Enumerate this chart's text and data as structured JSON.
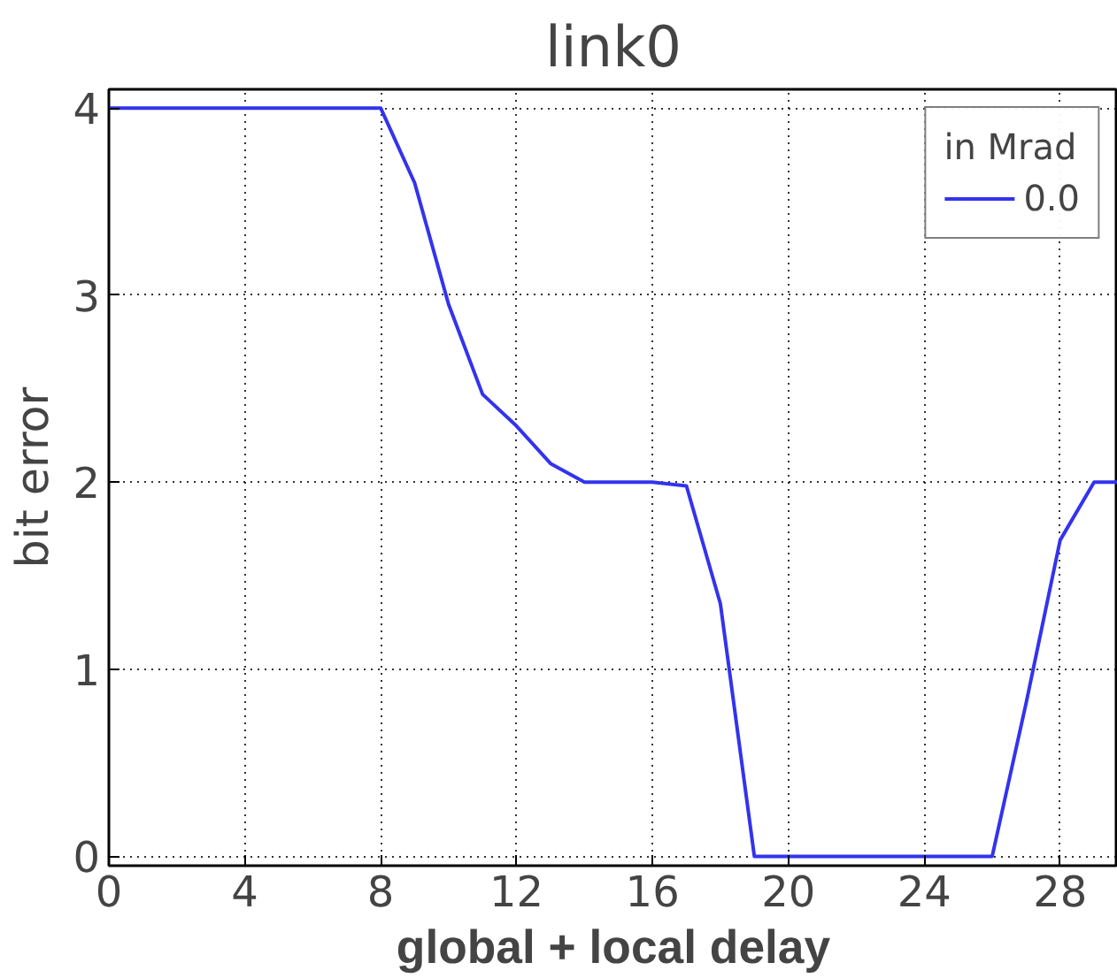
{
  "chart_data": {
    "type": "line",
    "title": "link0",
    "xlabel": "global + local delay",
    "ylabel": "bit error",
    "legend_title": "in Mrad",
    "x": [
      0,
      1,
      2,
      3,
      4,
      5,
      6,
      7,
      8,
      9,
      10,
      11,
      12,
      13,
      14,
      15,
      16,
      17,
      18,
      19,
      20,
      21,
      22,
      23,
      24,
      25,
      26,
      27,
      28,
      29,
      29.7
    ],
    "series": [
      {
        "name": "0.0",
        "color": "#3333ee",
        "values": [
          4,
          4,
          4,
          4,
          4,
          4,
          4,
          4,
          4,
          3.6,
          2.95,
          2.47,
          2.3,
          2.1,
          2,
          2,
          2,
          1.98,
          1.35,
          0,
          0,
          0,
          0,
          0,
          0,
          0,
          0,
          0.82,
          1.69,
          2,
          2
        ]
      }
    ],
    "xlim": [
      0,
      29.7
    ],
    "ylim": [
      -0.05,
      4.1
    ],
    "xticks": [
      0,
      4,
      8,
      12,
      16,
      20,
      24,
      28
    ],
    "yticks": [
      0,
      1,
      2,
      3,
      4
    ],
    "grid": true,
    "legend": "top right",
    "line_style": "solid"
  }
}
